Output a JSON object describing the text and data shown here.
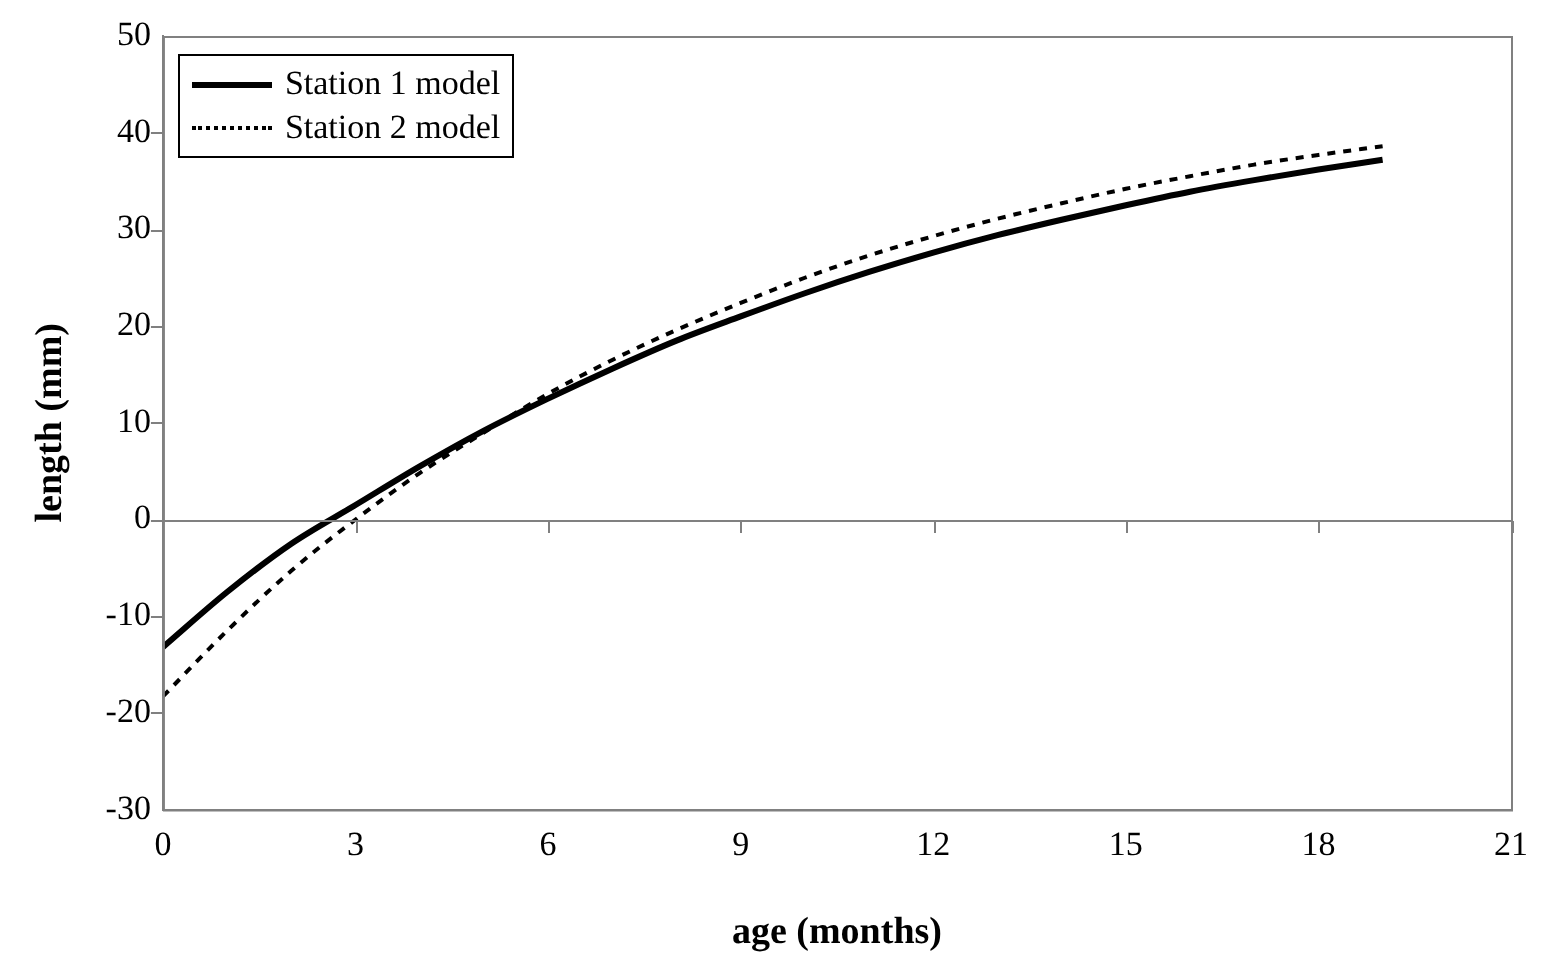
{
  "chart_data": {
    "type": "line",
    "xlabel": "age (months)",
    "ylabel": "length (mm)",
    "xlim": [
      0,
      21
    ],
    "xticks": [
      0,
      3,
      6,
      9,
      12,
      15,
      18,
      21
    ],
    "ylim": [
      -30,
      50
    ],
    "yticks": [
      -30,
      -20,
      -10,
      0,
      10,
      20,
      30,
      40,
      50
    ],
    "grid": false,
    "legend": "top left",
    "marker": "none",
    "ref_lines": [
      {
        "axis": "y",
        "value": 0,
        "color": "#808080"
      }
    ],
    "x": [
      0,
      1,
      2,
      3,
      4,
      5,
      6,
      7,
      8,
      9,
      10,
      11,
      12,
      13,
      14,
      15,
      16,
      17,
      18,
      19
    ],
    "series": [
      {
        "name": "Station 1 model",
        "color": "#000000",
        "line_style": "solid",
        "values": [
          -13.2,
          -7.5,
          -2.5,
          1.5,
          5.5,
          9.2,
          12.5,
          15.6,
          18.5,
          21,
          23.4,
          25.6,
          27.6,
          29.4,
          31,
          32.5,
          33.9,
          35.1,
          36.2,
          37.2
        ]
      },
      {
        "name": "Station 2 model",
        "color": "#000000",
        "line_style": "dotted",
        "values": [
          -18.3,
          -11.5,
          -5.3,
          0,
          4.8,
          9,
          13,
          16.5,
          19.6,
          22.4,
          25,
          27.3,
          29.3,
          31.1,
          32.7,
          34.2,
          35.5,
          36.7,
          37.7,
          38.6
        ]
      }
    ]
  }
}
